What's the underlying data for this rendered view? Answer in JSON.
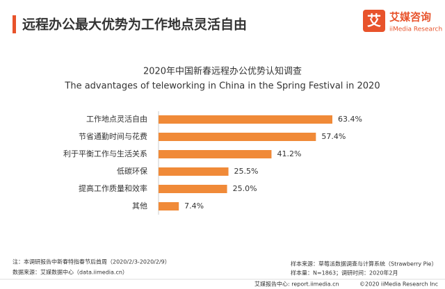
{
  "header": {
    "title": "远程办公最大优势为工作地点灵活自由",
    "logo_icon": "艾",
    "logo_name": "艾媒咨询",
    "logo_sub": "iiMedia Research"
  },
  "chart_data": {
    "type": "bar",
    "title": "2020年中国新春远程办公优势认知调查",
    "subtitle": "The advantages of teleworking in China in the Spring Festival in 2020",
    "categories": [
      "工作地点灵活自由",
      "节省通勤时间与花费",
      "利于平衡工作与生活关系",
      "低碳环保",
      "提高工作质量和效率",
      "其他"
    ],
    "values": [
      63.4,
      57.4,
      41.2,
      25.5,
      25.0,
      7.4
    ],
    "value_labels": [
      "63.4%",
      "57.4%",
      "41.2%",
      "25.5%",
      "25.0%",
      "7.4%"
    ],
    "color": "#f08a38"
  },
  "notes": {
    "note": "注：本调研报告中新春特指春节后首周（2020/2/3-2020/2/9）",
    "source": "数据来源：艾媒数据中心（data.iimedia.cn）",
    "sample_source": "样本来源：草莓派数据调查与计算系统（Strawberry Pie）",
    "sample_size": "样本量：N=1863；调研时间：2020年2月"
  },
  "footer": {
    "left": "艾媒报告中心: report.iimedia.cn",
    "right": "©2020 iiMedia Research Inc"
  }
}
